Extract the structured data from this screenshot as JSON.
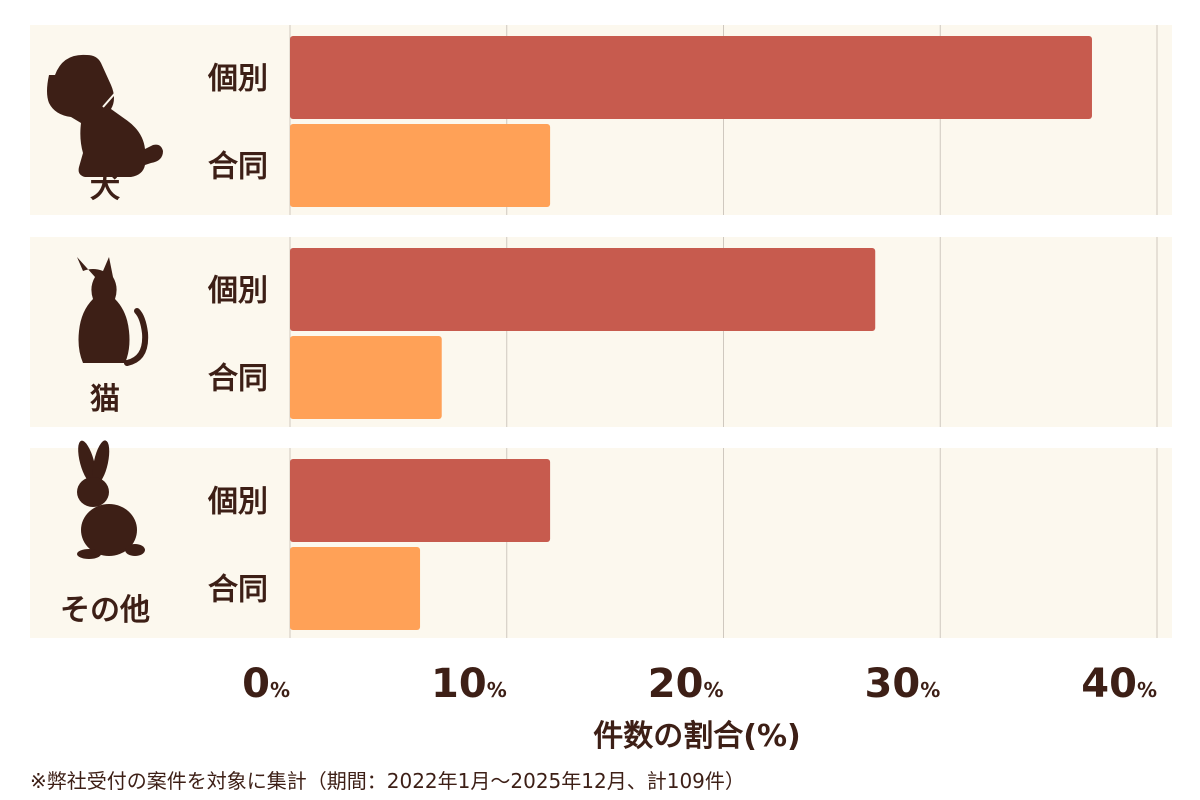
{
  "chart_data": {
    "type": "bar",
    "orientation": "horizontal",
    "groups": [
      {
        "label": "犬",
        "icon": "dog-icon",
        "bars": [
          {
            "label": "個別",
            "value": 37.0
          },
          {
            "label": "合同",
            "value": 12.0
          }
        ]
      },
      {
        "label": "猫",
        "icon": "cat-icon",
        "bars": [
          {
            "label": "個別",
            "value": 27.0
          },
          {
            "label": "合同",
            "value": 7.0
          }
        ]
      },
      {
        "label": "その他",
        "icon": "rabbit-icon",
        "bars": [
          {
            "label": "個別",
            "value": 12.0
          },
          {
            "label": "合同",
            "value": 6.0
          }
        ]
      }
    ],
    "xlim": [
      0,
      40
    ],
    "ticks": [
      0,
      10,
      20,
      30,
      40
    ],
    "tick_unit": "%",
    "xlabel": "件数の割合(%)",
    "grid": true,
    "colors": {
      "個別": "#c75b4e",
      "合同": "#ffa157"
    }
  },
  "footnote": "※弊社受付の案件を対象に集計（期間：2022年1月～2025年12月、計109件）"
}
